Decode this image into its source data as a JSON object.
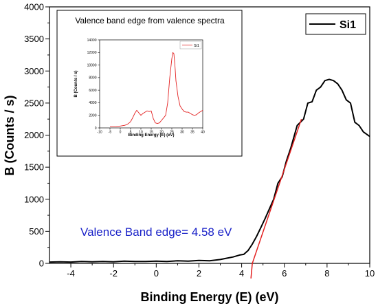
{
  "chart_data": [
    {
      "type": "line",
      "xlabel": "Binding Energy (E) (eV)",
      "ylabel": "B (Counts / s)",
      "xlim": [
        -5,
        10
      ],
      "ylim": [
        0,
        4000
      ],
      "xticks": [
        -4,
        -2,
        0,
        2,
        4,
        6,
        8,
        10
      ],
      "yticks": [
        0,
        500,
        1000,
        1500,
        2000,
        2500,
        3000,
        3500,
        4000
      ],
      "legend": {
        "position": "top-right",
        "entries": [
          "Si1"
        ]
      },
      "annotation": "Valence Band edge= 4.58 eV",
      "series": [
        {
          "name": "Si1",
          "color": "#000000",
          "x": [
            -5,
            -4.5,
            -4,
            -3.5,
            -3,
            -2.5,
            -2,
            -1.5,
            -1,
            -0.5,
            0,
            0.5,
            1,
            1.5,
            2,
            2.5,
            3,
            3.3,
            3.6,
            3.9,
            4.1,
            4.3,
            4.5,
            4.7,
            4.9,
            5.1,
            5.3,
            5.5,
            5.7,
            5.9,
            6.1,
            6.3,
            6.6,
            6.9,
            7.1,
            7.3,
            7.5,
            7.7,
            7.9,
            8.1,
            8.3,
            8.5,
            8.7,
            8.9,
            9.1,
            9.3,
            9.5,
            9.7,
            10
          ],
          "y": [
            20,
            25,
            20,
            30,
            25,
            30,
            25,
            35,
            30,
            30,
            35,
            30,
            40,
            35,
            45,
            40,
            60,
            80,
            100,
            130,
            140,
            200,
            300,
            420,
            560,
            700,
            850,
            1000,
            1250,
            1350,
            1600,
            1800,
            2150,
            2250,
            2500,
            2520,
            2700,
            2750,
            2850,
            2870,
            2850,
            2800,
            2700,
            2550,
            2500,
            2200,
            2150,
            2050,
            1980
          ]
        }
      ],
      "fit_line": {
        "color": "#e32020",
        "x": [
          4.5,
          6.8
        ],
        "y": [
          0,
          2250
        ]
      }
    },
    {
      "type": "line",
      "title": "Valence band edge from valence spectra",
      "xlabel": "Binding Energy (E) (eV)",
      "ylabel": "B (Counts / s)",
      "xlim": [
        -10,
        40
      ],
      "ylim": [
        0,
        14000
      ],
      "xticks": [
        -10,
        -5,
        0,
        5,
        10,
        15,
        20,
        25,
        30,
        35,
        40
      ],
      "yticks": [
        0,
        2000,
        4000,
        6000,
        8000,
        10000,
        12000,
        14000
      ],
      "legend": {
        "position": "top-right",
        "entries": [
          "Si1"
        ]
      },
      "series": [
        {
          "name": "Si1",
          "color": "#e32020",
          "x": [
            -5,
            -2,
            0,
            2,
            3,
            4,
            5,
            6,
            7,
            8,
            9,
            10,
            11,
            12,
            13,
            14,
            15,
            16,
            17,
            18,
            19,
            20,
            21,
            22,
            23,
            24,
            25,
            25.5,
            26,
            26.5,
            27,
            28,
            29,
            30,
            31,
            32,
            33,
            34,
            35,
            36,
            37,
            38,
            39,
            40
          ],
          "y": [
            200,
            200,
            300,
            400,
            500,
            700,
            1000,
            1600,
            2300,
            2800,
            2400,
            2000,
            2300,
            2500,
            2700,
            2600,
            2700,
            1500,
            800,
            700,
            800,
            1200,
            1600,
            2000,
            4000,
            8000,
            11000,
            12000,
            11800,
            10000,
            7500,
            5000,
            3500,
            3000,
            2600,
            2500,
            2500,
            2300,
            2100,
            2000,
            2100,
            2400,
            2600,
            2800
          ]
        }
      ]
    }
  ]
}
